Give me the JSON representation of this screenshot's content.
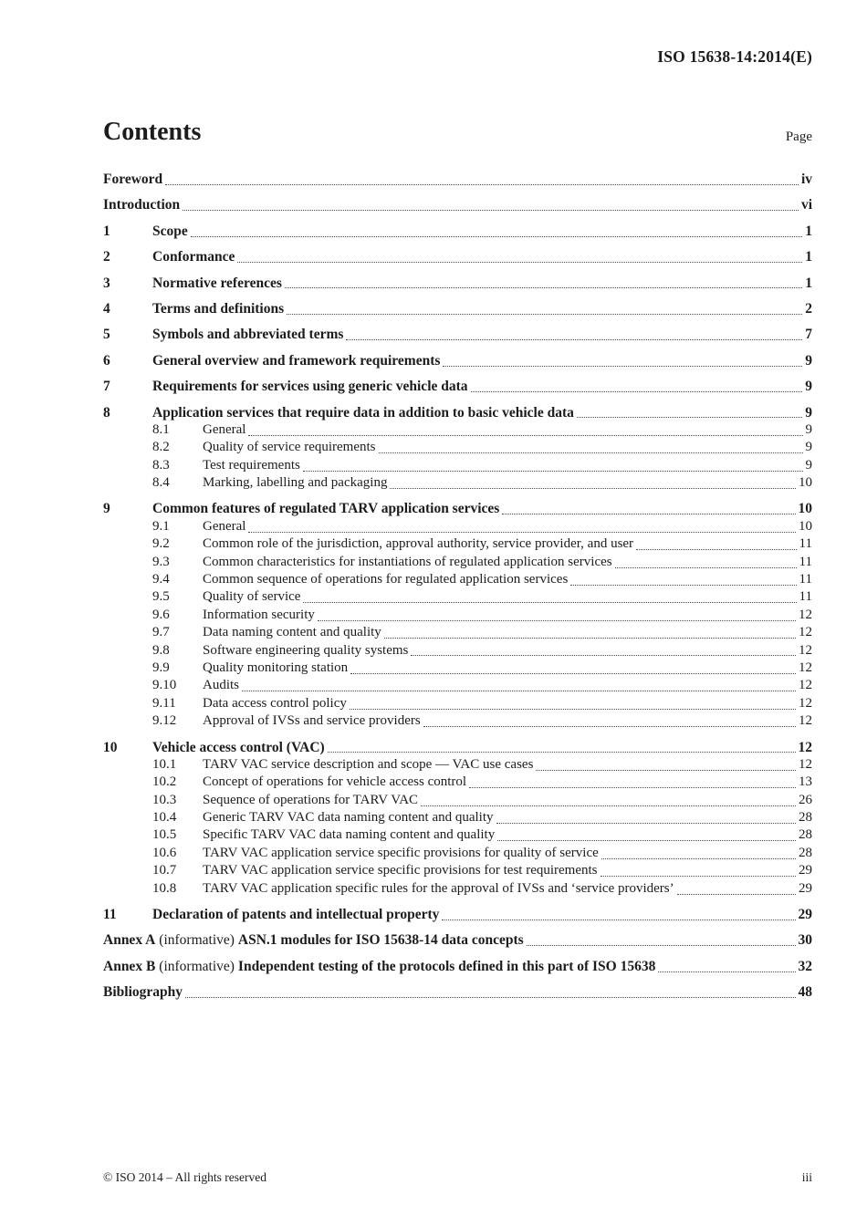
{
  "document": {
    "header_reference": "ISO 15638-14:2014(E)",
    "contents_heading": "Contents",
    "page_column_label": "Page",
    "footer": {
      "copyright": "© ISO 2014 – All rights reserved",
      "page_number": "iii"
    }
  },
  "toc": {
    "entries": [
      {
        "type": "top",
        "num": "",
        "title": "Foreword",
        "page": "iv"
      },
      {
        "type": "top",
        "num": "",
        "title": "Introduction",
        "page": "vi"
      },
      {
        "type": "top",
        "num": "1",
        "title": "Scope",
        "page": "1"
      },
      {
        "type": "top",
        "num": "2",
        "title": "Conformance",
        "page": "1"
      },
      {
        "type": "top",
        "num": "3",
        "title": "Normative references",
        "page": "1"
      },
      {
        "type": "top",
        "num": "4",
        "title": "Terms and definitions",
        "page": "2"
      },
      {
        "type": "top",
        "num": "5",
        "title": "Symbols and abbreviated terms",
        "page": "7"
      },
      {
        "type": "top",
        "num": "6",
        "title": "General overview and framework requirements",
        "page": "9"
      },
      {
        "type": "top",
        "num": "7",
        "title": "Requirements for services using generic vehicle data",
        "page": "9"
      },
      {
        "type": "top",
        "num": "8",
        "title": "Application services that require data in addition to basic vehicle data",
        "page": "9"
      },
      {
        "type": "sub",
        "num": "8.1",
        "title": "General",
        "page": "9"
      },
      {
        "type": "sub",
        "num": "8.2",
        "title": "Quality of service requirements",
        "page": "9"
      },
      {
        "type": "sub",
        "num": "8.3",
        "title": "Test requirements",
        "page": "9"
      },
      {
        "type": "sub",
        "num": "8.4",
        "title": "Marking, labelling and packaging",
        "page": "10"
      },
      {
        "type": "top",
        "num": "9",
        "title": "Common features of regulated TARV application services",
        "page": "10"
      },
      {
        "type": "sub",
        "num": "9.1",
        "title": "General",
        "page": "10"
      },
      {
        "type": "sub",
        "num": "9.2",
        "title": "Common role of the jurisdiction, approval authority, service provider, and user",
        "page": "11"
      },
      {
        "type": "sub",
        "num": "9.3",
        "title": "Common characteristics for instantiations of regulated application services",
        "page": "11"
      },
      {
        "type": "sub",
        "num": "9.4",
        "title": "Common sequence of operations for regulated application services",
        "page": "11"
      },
      {
        "type": "sub",
        "num": "9.5",
        "title": "Quality of service",
        "page": "11"
      },
      {
        "type": "sub",
        "num": "9.6",
        "title": "Information security",
        "page": "12"
      },
      {
        "type": "sub",
        "num": "9.7",
        "title": "Data naming content and quality",
        "page": "12"
      },
      {
        "type": "sub",
        "num": "9.8",
        "title": "Software engineering quality systems",
        "page": "12"
      },
      {
        "type": "sub",
        "num": "9.9",
        "title": "Quality monitoring station",
        "page": "12"
      },
      {
        "type": "sub",
        "num": "9.10",
        "title": "Audits",
        "page": "12"
      },
      {
        "type": "sub",
        "num": "9.11",
        "title": "Data access control policy",
        "page": "12"
      },
      {
        "type": "sub",
        "num": "9.12",
        "title": "Approval of IVSs and service providers",
        "page": "12"
      },
      {
        "type": "top",
        "num": "10",
        "title": "Vehicle access control (VAC)",
        "page": "12"
      },
      {
        "type": "sub",
        "num": "10.1",
        "title": "TARV VAC service description and scope — VAC use cases",
        "page": "12"
      },
      {
        "type": "sub",
        "num": "10.2",
        "title": "Concept of operations for vehicle access control",
        "page": "13"
      },
      {
        "type": "sub",
        "num": "10.3",
        "title": "Sequence of operations for TARV VAC",
        "page": "26"
      },
      {
        "type": "sub",
        "num": "10.4",
        "title": "Generic TARV VAC data naming content and quality",
        "page": "28"
      },
      {
        "type": "sub",
        "num": "10.5",
        "title": "Specific TARV VAC data naming content and quality",
        "page": "28"
      },
      {
        "type": "sub",
        "num": "10.6",
        "title": "TARV VAC application service specific provisions for quality of service",
        "page": "28"
      },
      {
        "type": "sub",
        "num": "10.7",
        "title": "TARV VAC application service specific provisions for test requirements",
        "page": "29"
      },
      {
        "type": "sub",
        "num": "10.8",
        "title": "TARV VAC application specific rules for the approval of IVSs and ‘service providers’",
        "page": "29"
      },
      {
        "type": "top",
        "num": "11",
        "title": "Declaration of patents and intellectual property",
        "page": "29"
      },
      {
        "type": "annex",
        "prefix": "Annex A",
        "qualifier": "(informative)",
        "title": "ASN.1 modules for ISO 15638-14 data concepts",
        "page": "30"
      },
      {
        "type": "annex",
        "prefix": "Annex B",
        "qualifier": "(informative)",
        "title": "Independent testing of the protocols defined in this part of ISO 15638",
        "page": "32"
      },
      {
        "type": "top",
        "num": "",
        "title": "Bibliography",
        "page": "48"
      }
    ]
  }
}
